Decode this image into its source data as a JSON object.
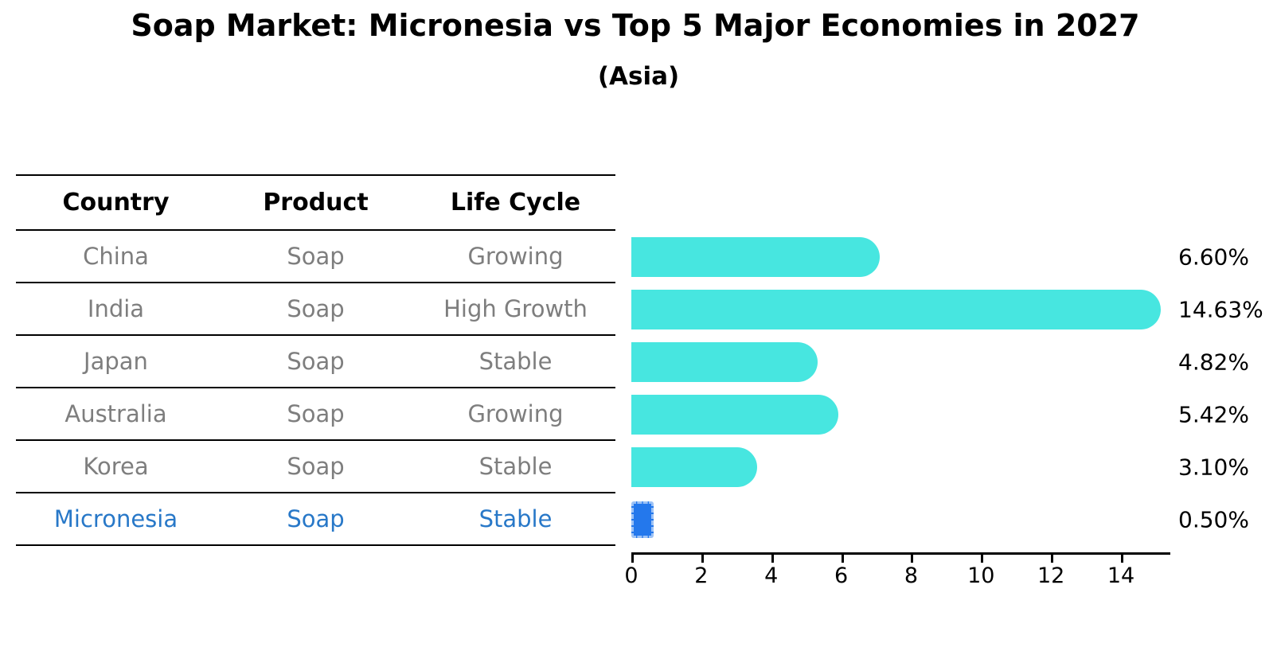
{
  "chart_data": {
    "type": "bar",
    "orientation": "horizontal",
    "title": "Soap Market: Micronesia vs Top 5 Major Economies in 2027",
    "subtitle": "(Asia)",
    "categories": [
      "China",
      "India",
      "Japan",
      "Australia",
      "Korea",
      "Micronesia"
    ],
    "values": [
      6.6,
      14.63,
      4.82,
      5.42,
      3.1,
      0.5
    ],
    "value_labels": [
      "6.60%",
      "14.63%",
      "4.82%",
      "5.42%",
      "3.10%",
      "0.50%"
    ],
    "x_ticks": [
      "0",
      "2",
      "4",
      "6",
      "8",
      "10",
      "12",
      "14"
    ],
    "xlim": [
      0,
      15.45
    ],
    "grid": false,
    "legend": "none",
    "bar_color": "#47E6E0",
    "highlight_color": "#2478EC",
    "highlight_index": 5,
    "axis_color": "#000000",
    "value_label_color": "#000000"
  },
  "table": {
    "columns": [
      "Country",
      "Product",
      "Life Cycle"
    ],
    "rows": [
      {
        "cells": [
          "China",
          "Soap",
          "Growing"
        ]
      },
      {
        "cells": [
          "India",
          "Soap",
          "High Growth"
        ]
      },
      {
        "cells": [
          "Japan",
          "Soap",
          "Stable"
        ]
      },
      {
        "cells": [
          "Australia",
          "Soap",
          "Growing"
        ]
      },
      {
        "cells": [
          "Korea",
          "Soap",
          "Stable"
        ]
      },
      {
        "cells": [
          "Micronesia",
          "Soap",
          "Stable"
        ]
      }
    ],
    "header_text_color": "#000000",
    "row_text_color": "#7E7E7E",
    "highlight_text_color": "#2878C8",
    "highlight_row_index": 5
  }
}
